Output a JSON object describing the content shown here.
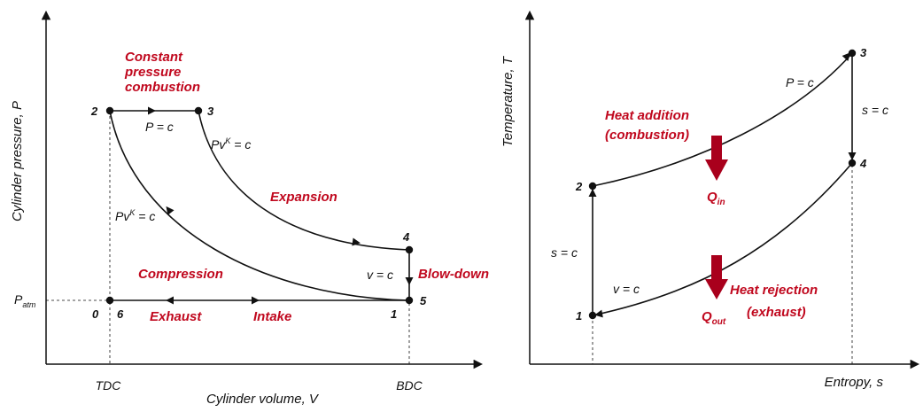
{
  "colors": {
    "ink": "#111111",
    "accent": "#c0081e"
  },
  "pv": {
    "y_axis_label": "Cylinder pressure, P",
    "x_axis_label": "Cylinder volume, V",
    "tdc": "TDC",
    "bdc": "BDC",
    "patm_base": "P",
    "patm_sub": "atm",
    "points": {
      "p0": "0",
      "p1": "1",
      "p2": "2",
      "p3": "3",
      "p4": "4",
      "p5": "5",
      "p6": "6"
    },
    "const_pressure_label": "P = c",
    "const_volume_label": "v = c",
    "polytropic_base": "Pv",
    "polytropic_exp": "K",
    "polytropic_tail": " = c",
    "combustion_line1": "Constant",
    "combustion_line2": "pressure",
    "combustion_line3": "combustion",
    "expansion": "Expansion",
    "compression": "Compression",
    "blowdown": "Blow-down",
    "exhaust": "Exhaust",
    "intake": "Intake"
  },
  "ts": {
    "y_axis_label": "Temperature, T",
    "x_axis_label": "Entropy, s",
    "points": {
      "p1": "1",
      "p2": "2",
      "p3": "3",
      "p4": "4"
    },
    "const_pressure_label": "P = c",
    "const_entropy_label": "s = c",
    "const_volume_label": "v = c",
    "heat_add_line1": "Heat addition",
    "heat_add_line2": "(combustion)",
    "q_in_base": "Q",
    "q_in_sub": "in",
    "heat_rej_line1": "Heat rejection",
    "heat_rej_line2": "(exhaust)",
    "q_out_base": "Q",
    "q_out_sub": "out"
  }
}
